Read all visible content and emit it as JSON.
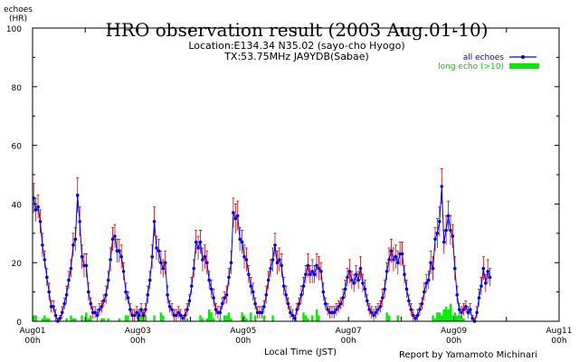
{
  "chart_data": {
    "type": "line",
    "title": "HRO observation result (2003 Aug.01-10)",
    "subtitle_lines": [
      "Location:E134.34 N35.02 (sayo-cho Hyogo)",
      "TX:53.75MHz JA9YDB(Sabae)"
    ],
    "ylabel_lines": [
      "echoes",
      "(HR)"
    ],
    "xlabel": "Local Time (JST)",
    "credit": "Report by Yamamoto Michinari",
    "ylim": [
      0,
      100
    ],
    "y_ticks": [
      "0",
      "20",
      "40",
      "60",
      "80",
      "100"
    ],
    "x_range_hours": [
      0,
      240
    ],
    "x_ticks": [
      {
        "hour": 0,
        "line1": "Aug01",
        "line2": "00h"
      },
      {
        "hour": 48,
        "line1": "Aug03",
        "line2": "00h"
      },
      {
        "hour": 96,
        "line1": "Aug05",
        "line2": "00h"
      },
      {
        "hour": 144,
        "line1": "Aug07",
        "line2": "00h"
      },
      {
        "hour": 192,
        "line1": "Aug09",
        "line2": "00h"
      },
      {
        "hour": 240,
        "line1": "Aug11",
        "line2": "00h"
      }
    ],
    "legend_position": "top-right",
    "series": [
      {
        "name": "all echoes",
        "color": "#0000ff",
        "error_color": "#cc0000",
        "style": "line-points-errorbars",
        "values": [
          42,
          38,
          39,
          34,
          26,
          21,
          15,
          10,
          5,
          5,
          2,
          0,
          1,
          3,
          6,
          9,
          14,
          18,
          26,
          28,
          43,
          34,
          22,
          19,
          19,
          10,
          6,
          3,
          3,
          2,
          4,
          5,
          7,
          9,
          14,
          21,
          28,
          29,
          24,
          24,
          22,
          17,
          10,
          8,
          4,
          2,
          2,
          3,
          2,
          4,
          2,
          4,
          9,
          14,
          22,
          34,
          25,
          24,
          20,
          18,
          20,
          9,
          5,
          4,
          2,
          2,
          3,
          2,
          1,
          2,
          4,
          7,
          12,
          18,
          27,
          25,
          27,
          21,
          22,
          20,
          14,
          11,
          8,
          4,
          3,
          3,
          6,
          8,
          9,
          15,
          20,
          37,
          35,
          36,
          28,
          27,
          22,
          21,
          16,
          12,
          10,
          6,
          3,
          3,
          3,
          5,
          9,
          14,
          18,
          21,
          26,
          20,
          21,
          19,
          12,
          9,
          6,
          3,
          2,
          1,
          4,
          6,
          9,
          12,
          16,
          19,
          16,
          17,
          16,
          19,
          18,
          17,
          10,
          6,
          4,
          3,
          3,
          3,
          4,
          5,
          6,
          8,
          11,
          15,
          17,
          14,
          13,
          16,
          14,
          18,
          13,
          11,
          7,
          4,
          3,
          2,
          3,
          4,
          5,
          8,
          11,
          17,
          21,
          24,
          21,
          22,
          20,
          23,
          23,
          16,
          11,
          7,
          4,
          2,
          1,
          2,
          4,
          6,
          10,
          13,
          14,
          20,
          18,
          28,
          30,
          34,
          46,
          27,
          31,
          36,
          31,
          29,
          18,
          9,
          4,
          3,
          4,
          5,
          3,
          4,
          1,
          0,
          3,
          8,
          12,
          18,
          13,
          17,
          15
        ],
        "errors": [
          5,
          4,
          4,
          4,
          4,
          3,
          3,
          3,
          2,
          2,
          2,
          1,
          1,
          2,
          2,
          3,
          3,
          3,
          4,
          4,
          6,
          5,
          4,
          4,
          4,
          3,
          2,
          2,
          2,
          2,
          2,
          2,
          2,
          3,
          3,
          4,
          4,
          4,
          4,
          4,
          4,
          3,
          3,
          2,
          2,
          2,
          2,
          2,
          2,
          2,
          2,
          2,
          3,
          3,
          4,
          5,
          4,
          4,
          4,
          3,
          4,
          3,
          2,
          2,
          2,
          2,
          2,
          2,
          1,
          2,
          2,
          2,
          3,
          3,
          4,
          4,
          4,
          4,
          4,
          4,
          3,
          3,
          3,
          2,
          2,
          2,
          2,
          2,
          3,
          3,
          4,
          5,
          5,
          5,
          4,
          4,
          4,
          4,
          3,
          3,
          3,
          2,
          2,
          2,
          2,
          2,
          3,
          3,
          3,
          4,
          4,
          4,
          4,
          4,
          3,
          3,
          2,
          2,
          2,
          1,
          2,
          2,
          3,
          3,
          3,
          4,
          3,
          4,
          3,
          4,
          4,
          3,
          3,
          2,
          2,
          2,
          2,
          2,
          2,
          2,
          2,
          3,
          3,
          3,
          4,
          3,
          3,
          3,
          3,
          4,
          3,
          3,
          2,
          2,
          2,
          2,
          2,
          2,
          2,
          3,
          3,
          3,
          4,
          4,
          4,
          4,
          4,
          4,
          4,
          3,
          3,
          2,
          2,
          2,
          1,
          2,
          2,
          2,
          3,
          3,
          3,
          4,
          4,
          4,
          5,
          5,
          6,
          4,
          5,
          5,
          5,
          4,
          4,
          3,
          2,
          2,
          2,
          2,
          2,
          2,
          1,
          1,
          2,
          3,
          3,
          4,
          3,
          4,
          3
        ]
      },
      {
        "name": "long echo (>10)",
        "color": "#00ee00",
        "style": "bars",
        "values": [
          2,
          2,
          0,
          0,
          1,
          2,
          1,
          1,
          0,
          0,
          0,
          0,
          0,
          0,
          0,
          1,
          0,
          2,
          1,
          1,
          0,
          0,
          2,
          0,
          3,
          1,
          2,
          0,
          0,
          0,
          0,
          1,
          1,
          0,
          1,
          0,
          0,
          0,
          0,
          1,
          0,
          0,
          2,
          2,
          0,
          0,
          0,
          0,
          2,
          2,
          3,
          2,
          0,
          0,
          0,
          2,
          0,
          0,
          3,
          2,
          0,
          0,
          0,
          0,
          0,
          0,
          0,
          0,
          0,
          0,
          1,
          0,
          0,
          0,
          0,
          0,
          2,
          1,
          0,
          1,
          4,
          3,
          1,
          0,
          0,
          1,
          0,
          2,
          2,
          3,
          1,
          0,
          0,
          0,
          0,
          3,
          2,
          1,
          0,
          3,
          0,
          2,
          0,
          0,
          0,
          2,
          0,
          0,
          0,
          2,
          0,
          0,
          0,
          0,
          0,
          0,
          0,
          0,
          0,
          0,
          0,
          0,
          0,
          3,
          2,
          1,
          0,
          2,
          0,
          4,
          2,
          0,
          0,
          0,
          0,
          0,
          0,
          0,
          0,
          0,
          0,
          0,
          0,
          0,
          0,
          0,
          0,
          0,
          0,
          0,
          0,
          0,
          0,
          0,
          0,
          0,
          0,
          0,
          0,
          0,
          0,
          3,
          2,
          0,
          0,
          0,
          2,
          0,
          0,
          0,
          0,
          0,
          0,
          0,
          0,
          0,
          0,
          0,
          0,
          0,
          0,
          0,
          2,
          1,
          3,
          3,
          2,
          4,
          5,
          4,
          6,
          2,
          3,
          2,
          2,
          2,
          1,
          0,
          0,
          0,
          0,
          0,
          0,
          0,
          0,
          0,
          0,
          0,
          0,
          0,
          0,
          0,
          0,
          0,
          0,
          0,
          0,
          0,
          0,
          0,
          0,
          0,
          0,
          0,
          0,
          0,
          0,
          0,
          0,
          0,
          0,
          0,
          0,
          0,
          0,
          0,
          0,
          0,
          0,
          0,
          0,
          0,
          0
        ]
      }
    ]
  }
}
